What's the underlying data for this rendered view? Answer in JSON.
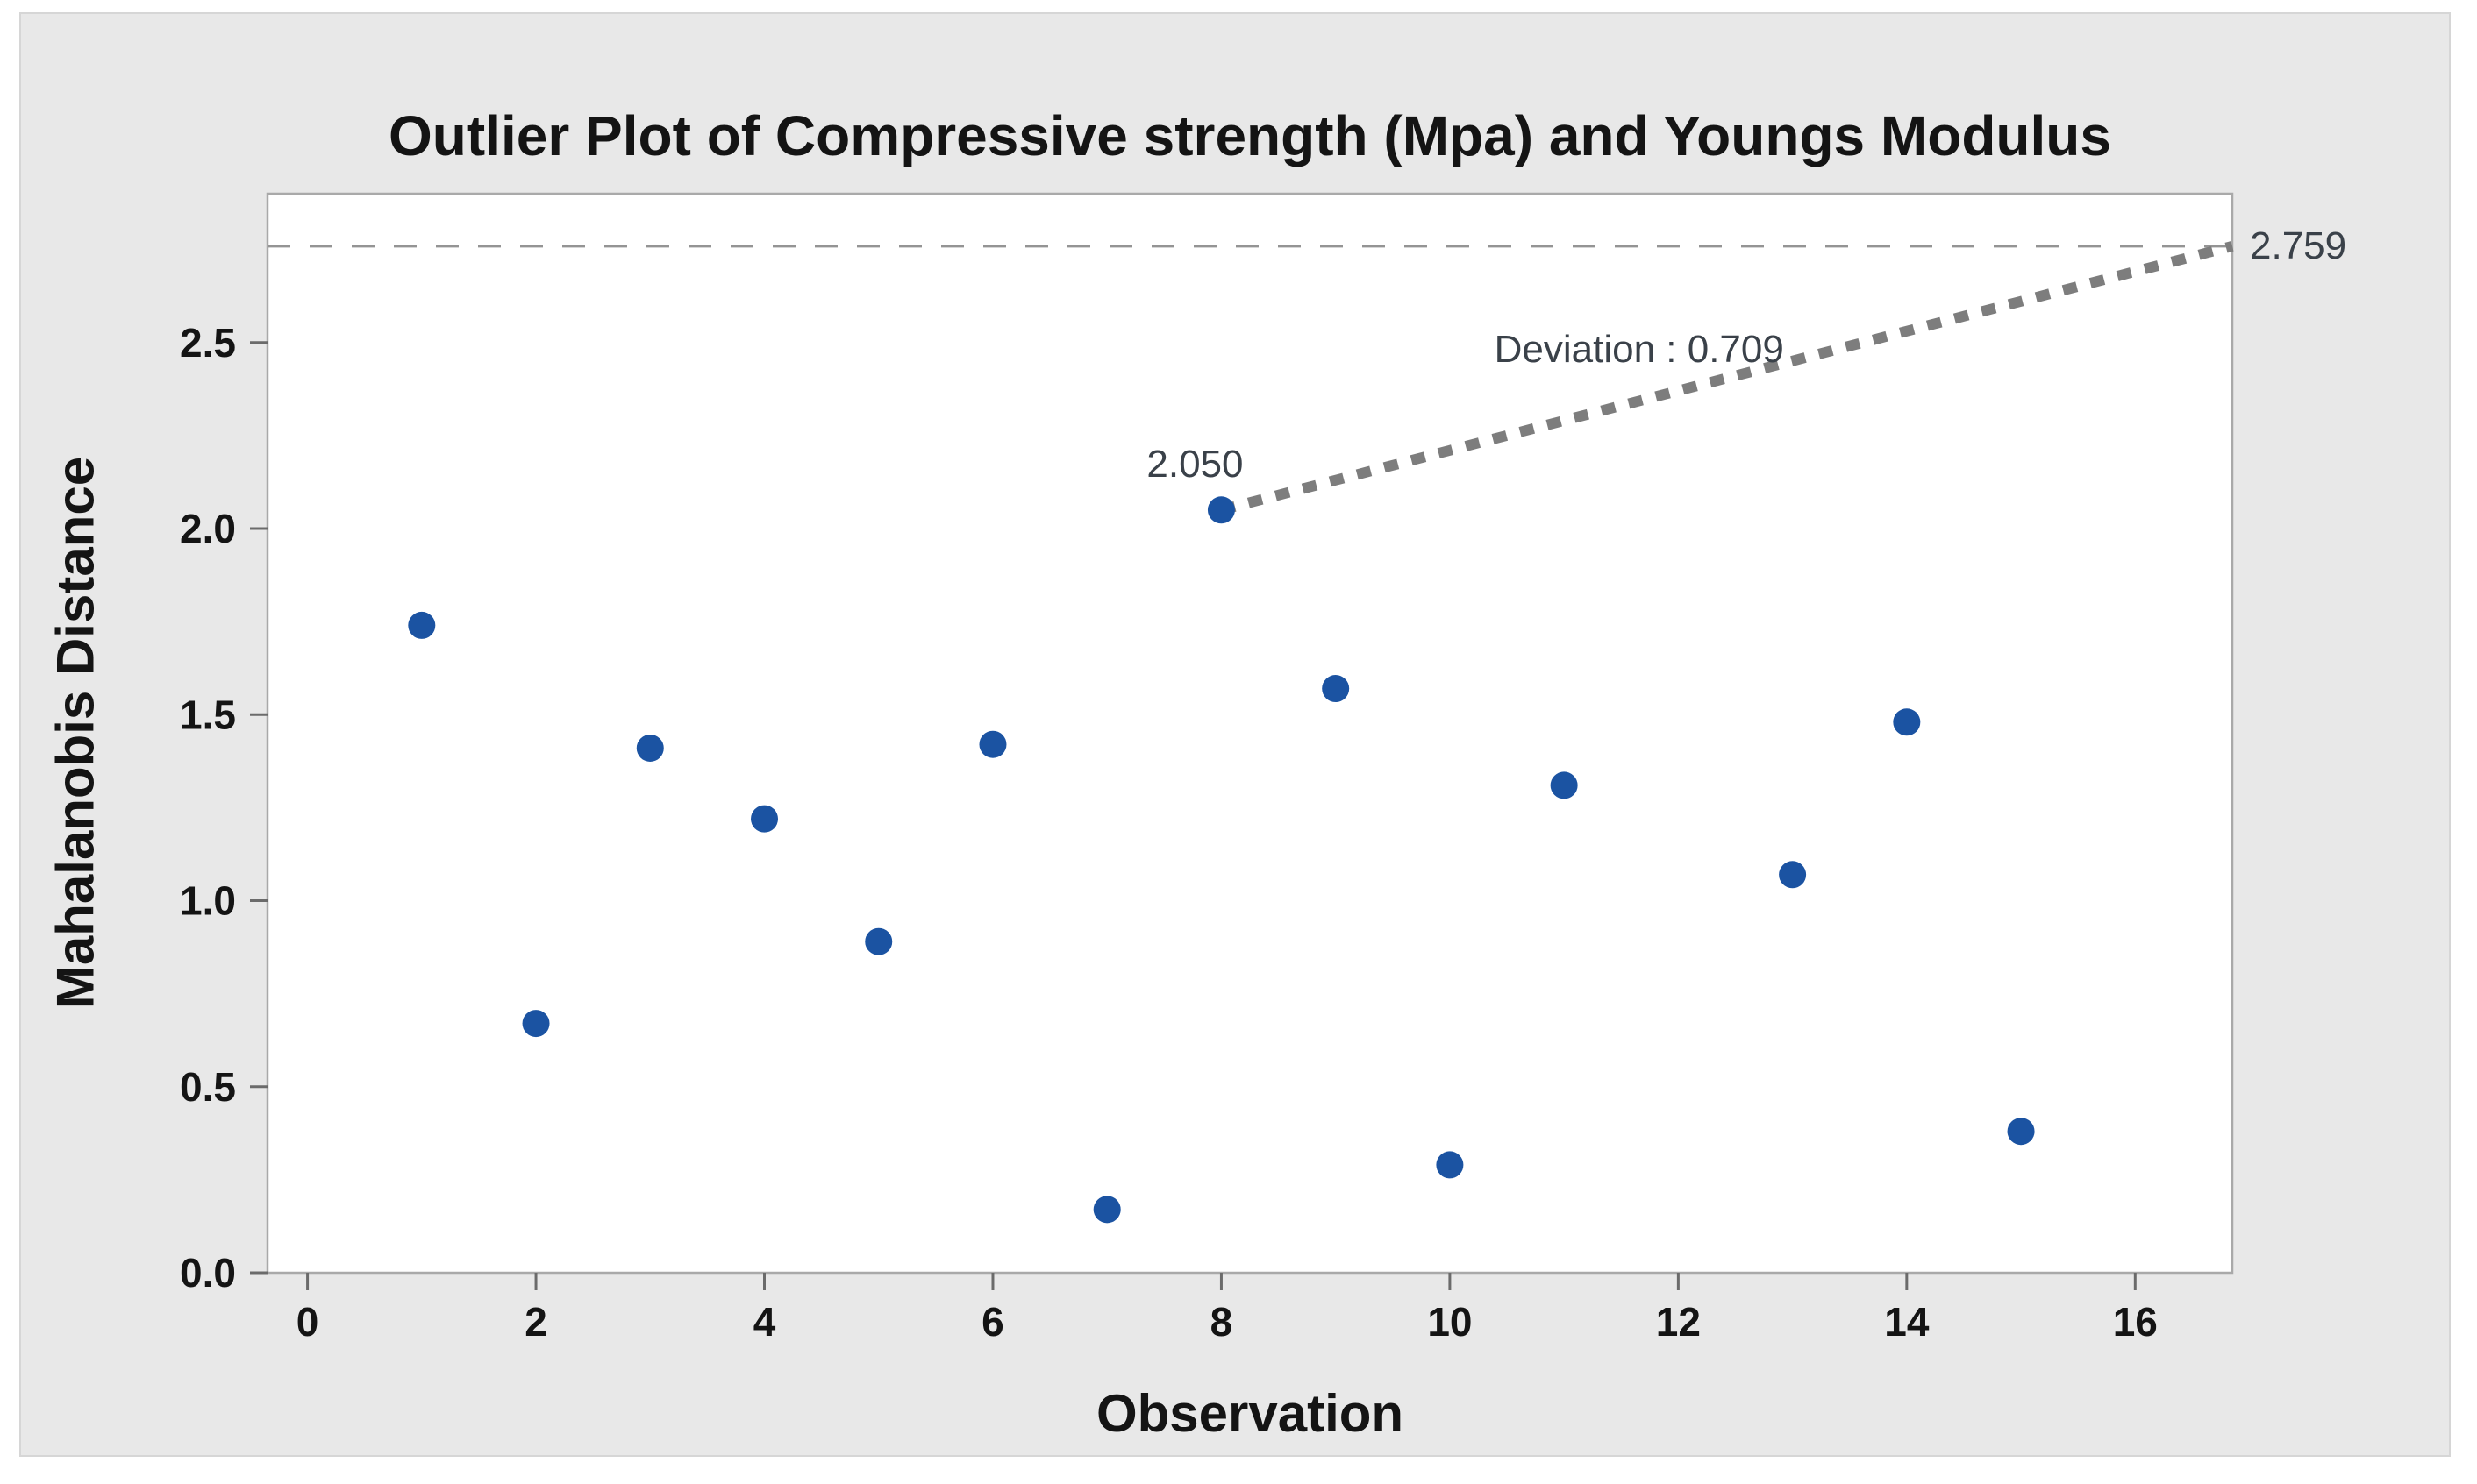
{
  "figure": {
    "page_background": "#ffffff",
    "panel_background": "#e8e8e8",
    "plot_background": "#ffffff",
    "plot_border_color": "#a9a9a9",
    "tick_color": "#6b6b6b",
    "text_color": "#141414",
    "annotation_color": "#3a4149"
  },
  "chart_data": {
    "type": "scatter",
    "title": "Outlier Plot of Compressive strength (Mpa) and Youngs Modulus",
    "xlabel": "Observation",
    "ylabel": "Mahalanobis Distance",
    "xlim": [
      -0.35,
      16.85
    ],
    "ylim": [
      0,
      2.9
    ],
    "grid": "off",
    "legend": "none",
    "xticks": {
      "values": [
        0,
        2,
        4,
        6,
        8,
        10,
        12,
        14,
        16
      ],
      "labels": [
        "0",
        "2",
        "4",
        "6",
        "8",
        "10",
        "12",
        "14",
        "16"
      ]
    },
    "yticks": {
      "values": [
        0,
        0.5,
        1.0,
        1.5,
        2.0,
        2.5
      ],
      "labels": [
        "0.0",
        "0.5",
        "1.0",
        "1.5",
        "2.0",
        "2.5"
      ]
    },
    "point_color": "#1b53a2",
    "points": [
      {
        "x": 1,
        "y": 1.74
      },
      {
        "x": 2,
        "y": 0.67
      },
      {
        "x": 3,
        "y": 1.41
      },
      {
        "x": 4,
        "y": 1.22
      },
      {
        "x": 5,
        "y": 0.89
      },
      {
        "x": 6,
        "y": 1.42
      },
      {
        "x": 7,
        "y": 0.17
      },
      {
        "x": 8,
        "y": 2.05
      },
      {
        "x": 9,
        "y": 1.57
      },
      {
        "x": 10,
        "y": 0.29
      },
      {
        "x": 11,
        "y": 1.31
      },
      {
        "x": 13,
        "y": 1.07
      },
      {
        "x": 14,
        "y": 1.48
      },
      {
        "x": 15,
        "y": 0.38
      }
    ],
    "reference_line": {
      "value": 2.759,
      "label": "2.759",
      "color": "#949494",
      "style": "dashed"
    },
    "outlier_callout": {
      "x": 8,
      "y": 2.05,
      "label": "2.050",
      "deviation_label": "Deviation : 0.709",
      "deviation_value": 0.709,
      "line_color": "#7d7d7d",
      "line_style": "dotted",
      "line_ends_at": "right edge of plot at reference line"
    }
  }
}
